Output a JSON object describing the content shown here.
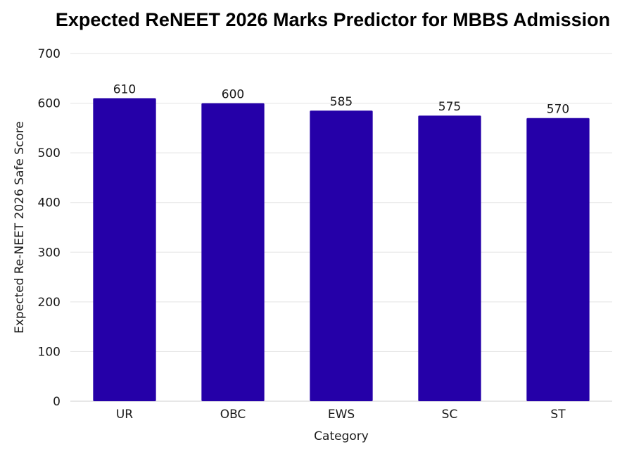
{
  "chart_data": {
    "type": "bar",
    "title": "Expected ReNEET 2026 Marks Predictor for MBBS Admission",
    "xlabel": "Category",
    "ylabel": "Expected Re-NEET 2026 Safe Score",
    "categories": [
      "UR",
      "OBC",
      "EWS",
      "SC",
      "ST"
    ],
    "values": [
      610,
      600,
      585,
      575,
      570
    ],
    "ylim": [
      0,
      700
    ],
    "yticks": [
      0,
      100,
      200,
      300,
      400,
      500,
      600,
      700
    ],
    "data_labels": [
      "610",
      "600",
      "585",
      "575",
      "570"
    ],
    "bar_color": "#2500A8",
    "grid": true,
    "legend": "none"
  }
}
